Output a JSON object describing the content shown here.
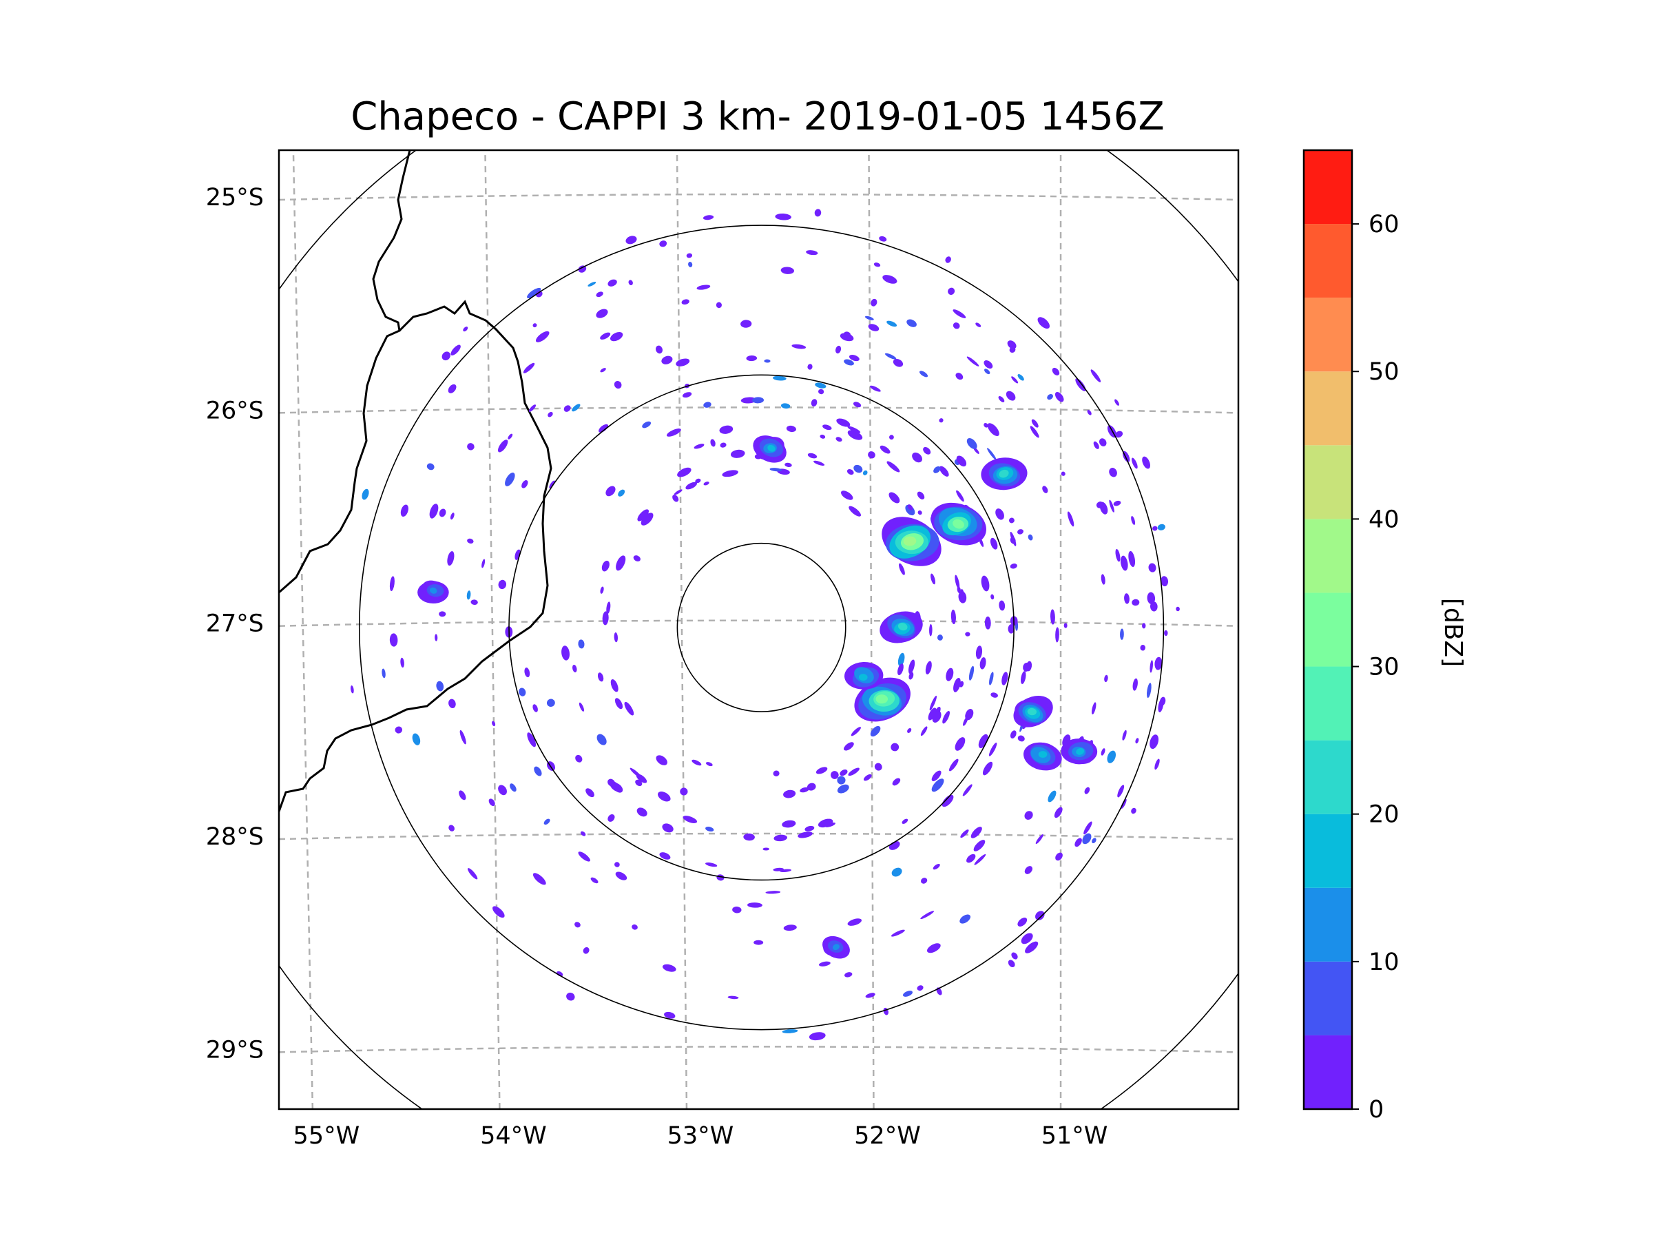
{
  "chart_data": {
    "type": "heatmap",
    "title": "Chapeco - CAPPI 3 km- 2019-01-05 1456Z",
    "lon_ticks": [
      "55°W",
      "54°W",
      "53°W",
      "52°W",
      "51°W"
    ],
    "lat_ticks": [
      "25°S",
      "26°S",
      "27°S",
      "28°S",
      "29°S"
    ],
    "lon_range": [
      -55.18,
      -50.05
    ],
    "lat_range": [
      -29.28,
      -24.78
    ],
    "radar_center": {
      "lon": -52.6,
      "lat": -27.02
    },
    "range_rings_deg": [
      0.45,
      1.35,
      2.15,
      3.15
    ],
    "colorbar": {
      "label": "[dBZ]",
      "ticks": [
        "0",
        "10",
        "20",
        "30",
        "40",
        "50",
        "60"
      ],
      "levels": [
        0,
        5,
        10,
        15,
        20,
        25,
        30,
        35,
        40,
        45,
        50,
        55,
        60,
        65
      ],
      "colors": [
        "#7121fd",
        "#4355f4",
        "#1b8fea",
        "#09bcdc",
        "#2dd9cc",
        "#52f2b6",
        "#7bfe9e",
        "#a1f98a",
        "#c8e37a",
        "#f1be6c",
        "#ff8c50",
        "#ff5a2e",
        "#ff1c12"
      ]
    },
    "echo_cells": [
      {
        "lon": -51.8,
        "lat": -26.62,
        "dbz": 38
      },
      {
        "lon": -51.55,
        "lat": -26.53,
        "dbz": 33
      },
      {
        "lon": -51.95,
        "lat": -27.36,
        "dbz": 34
      },
      {
        "lon": -51.85,
        "lat": -27.02,
        "dbz": 22
      },
      {
        "lon": -51.3,
        "lat": -26.3,
        "dbz": 24
      },
      {
        "lon": -51.15,
        "lat": -27.42,
        "dbz": 20
      },
      {
        "lon": -50.9,
        "lat": -27.6,
        "dbz": 16
      },
      {
        "lon": -51.1,
        "lat": -27.62,
        "dbz": 18
      },
      {
        "lon": -52.05,
        "lat": -27.25,
        "dbz": 18
      },
      {
        "lon": -52.2,
        "lat": -28.52,
        "dbz": 10
      },
      {
        "lon": -52.55,
        "lat": -26.18,
        "dbz": 15
      },
      {
        "lon": -54.35,
        "lat": -26.85,
        "dbz": 12
      }
    ]
  }
}
